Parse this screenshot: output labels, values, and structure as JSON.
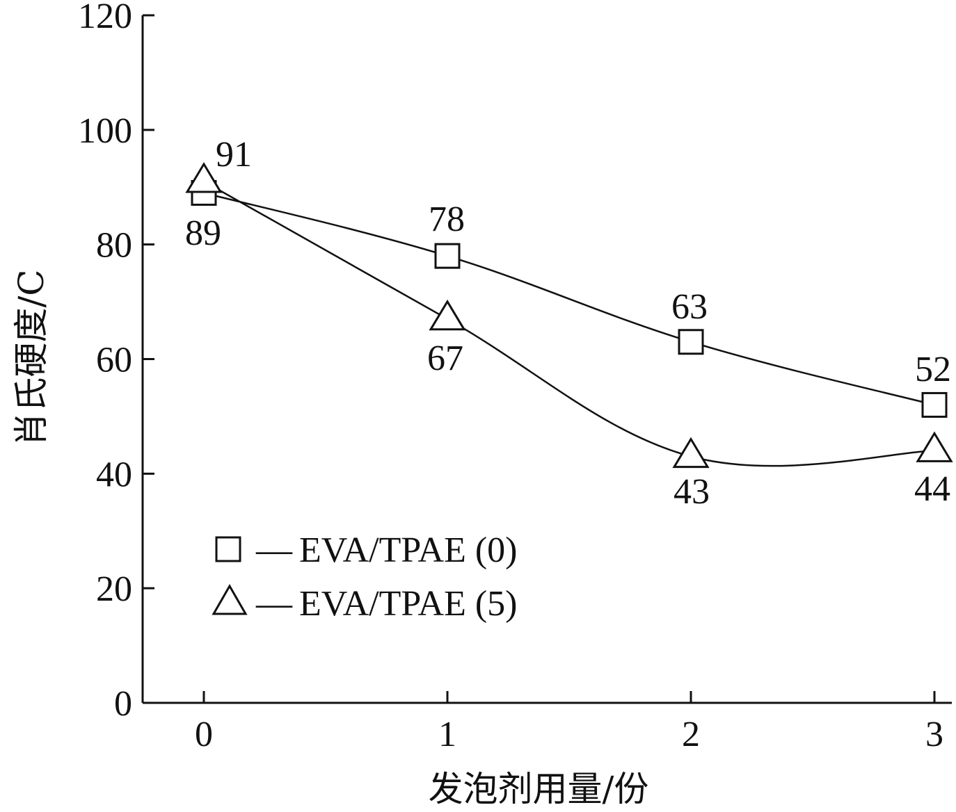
{
  "chart_data": {
    "type": "line",
    "xlabel": "发泡剂用量/份",
    "ylabel": "肖氏硬度/C",
    "x": [
      0,
      1,
      2,
      3
    ],
    "xticks": [
      "0",
      "1",
      "2",
      "3"
    ],
    "yticks": [
      "0",
      "20",
      "40",
      "60",
      "80",
      "100",
      "120"
    ],
    "ylim": [
      0,
      120
    ],
    "series": [
      {
        "name": "EVA/TPAE (0)",
        "marker": "square",
        "values": [
          89,
          78,
          63,
          52
        ],
        "labels": [
          "89",
          "78",
          "63",
          "52"
        ]
      },
      {
        "name": "EVA/TPAE (5)",
        "marker": "triangle",
        "values": [
          91,
          67,
          43,
          44
        ],
        "labels": [
          "91",
          "67",
          "43",
          "44"
        ]
      }
    ],
    "legend_dash": "—",
    "legend_position": "lower-left",
    "grid": false
  }
}
